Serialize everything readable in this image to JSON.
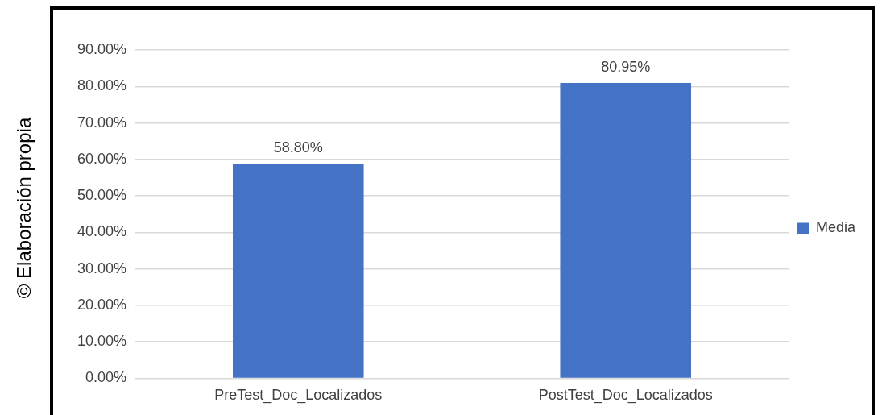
{
  "chart_data": {
    "type": "bar",
    "categories": [
      "PreTest_Doc_Localizados",
      "PostTest_Doc_Localizados"
    ],
    "series": [
      {
        "name": "Media",
        "color": "#4472c4",
        "values": [
          58.8,
          80.95
        ],
        "value_labels": [
          "58.80%",
          "80.95%"
        ]
      }
    ],
    "ylim": [
      0,
      90
    ],
    "yticks": [
      {
        "value": 0,
        "label": "0.00%"
      },
      {
        "value": 10,
        "label": "10.00%"
      },
      {
        "value": 20,
        "label": "20.00%"
      },
      {
        "value": 30,
        "label": "30.00%"
      },
      {
        "value": 40,
        "label": "40.00%"
      },
      {
        "value": 50,
        "label": "50.00%"
      },
      {
        "value": 60,
        "label": "60.00%"
      },
      {
        "value": 70,
        "label": "70.00%"
      },
      {
        "value": 80,
        "label": "80.00%"
      },
      {
        "value": 90,
        "label": "90.00%"
      }
    ],
    "grid": "y",
    "legend": "right",
    "annotations": [
      "© Elaboración propia"
    ]
  }
}
